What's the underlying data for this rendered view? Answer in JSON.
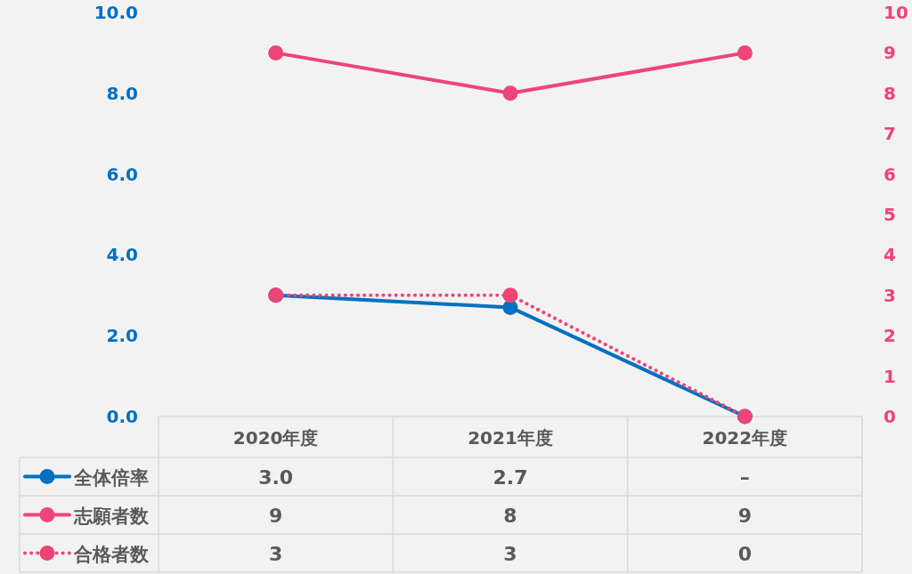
{
  "chart_data": {
    "type": "line",
    "categories": [
      "2020年度",
      "2021年度",
      "2022年度"
    ],
    "series": [
      {
        "name": "全体倍率",
        "color": "#0070c0",
        "values": [
          3.0,
          2.7,
          0
        ],
        "value_labels": [
          "3.0",
          "2.7",
          "–"
        ],
        "line_style": "solid"
      },
      {
        "name": "志願者数",
        "color": "#ee4477",
        "values": [
          9,
          8,
          9
        ],
        "axis": "y2",
        "value_labels": [
          "9",
          "8",
          "9"
        ],
        "line_style": "solid"
      },
      {
        "name": "合格者数",
        "color": "#ee4477",
        "values": [
          3,
          3,
          0
        ],
        "axis": "y2",
        "value_labels": [
          "3",
          "3",
          "0"
        ],
        "line_style": "dotted"
      }
    ],
    "ylim": [
      0,
      10
    ],
    "yticks": [
      {
        "value": 0,
        "label": "0.0"
      },
      {
        "value": 2,
        "label": "2.0"
      },
      {
        "value": 4,
        "label": "4.0"
      },
      {
        "value": 6,
        "label": "6.0"
      },
      {
        "value": 8,
        "label": "8.0"
      },
      {
        "value": 10,
        "label": "10.0"
      }
    ],
    "y2lim": [
      0,
      10
    ],
    "y2ticks": [
      0,
      1,
      2,
      3,
      4,
      5,
      6,
      7,
      8,
      9,
      10
    ],
    "marker": "circle",
    "legend": "bottom"
  }
}
